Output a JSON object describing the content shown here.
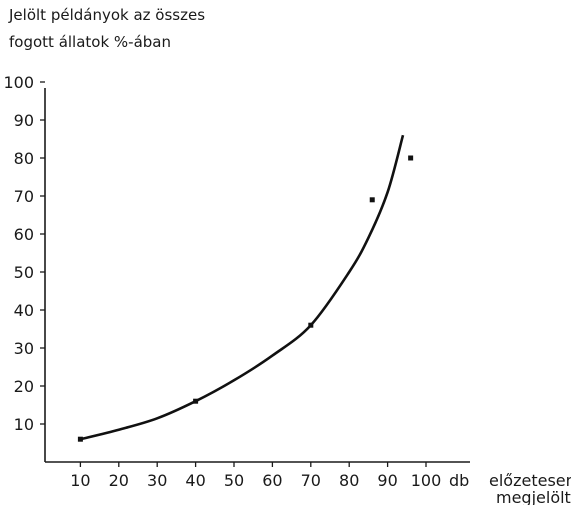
{
  "chart_data": {
    "type": "scatter",
    "title": "",
    "ylabel_lines": [
      "Jelölt példányok az összes",
      "fogott állatok %-ában"
    ],
    "xlabel_unit": "db",
    "xlabel_lines": [
      "előzetesen",
      "megjelölt"
    ],
    "xlim": [
      0,
      110
    ],
    "ylim": [
      0,
      100
    ],
    "x_ticks": [
      10,
      20,
      30,
      40,
      50,
      60,
      70,
      80,
      90,
      100
    ],
    "y_ticks": [
      10,
      20,
      30,
      40,
      50,
      60,
      70,
      80,
      90,
      100
    ],
    "grid": false,
    "points": [
      {
        "x": 10,
        "y": 6
      },
      {
        "x": 40,
        "y": 16
      },
      {
        "x": 70,
        "y": 36
      },
      {
        "x": 86,
        "y": 69
      },
      {
        "x": 96,
        "y": 80
      }
    ],
    "fit_curve": [
      {
        "x": 10,
        "y": 6
      },
      {
        "x": 20,
        "y": 8.5
      },
      {
        "x": 30,
        "y": 11.5
      },
      {
        "x": 40,
        "y": 16
      },
      {
        "x": 50,
        "y": 21.5
      },
      {
        "x": 60,
        "y": 28
      },
      {
        "x": 70,
        "y": 36
      },
      {
        "x": 80,
        "y": 50
      },
      {
        "x": 85,
        "y": 59
      },
      {
        "x": 90,
        "y": 71
      },
      {
        "x": 94,
        "y": 86
      }
    ]
  }
}
